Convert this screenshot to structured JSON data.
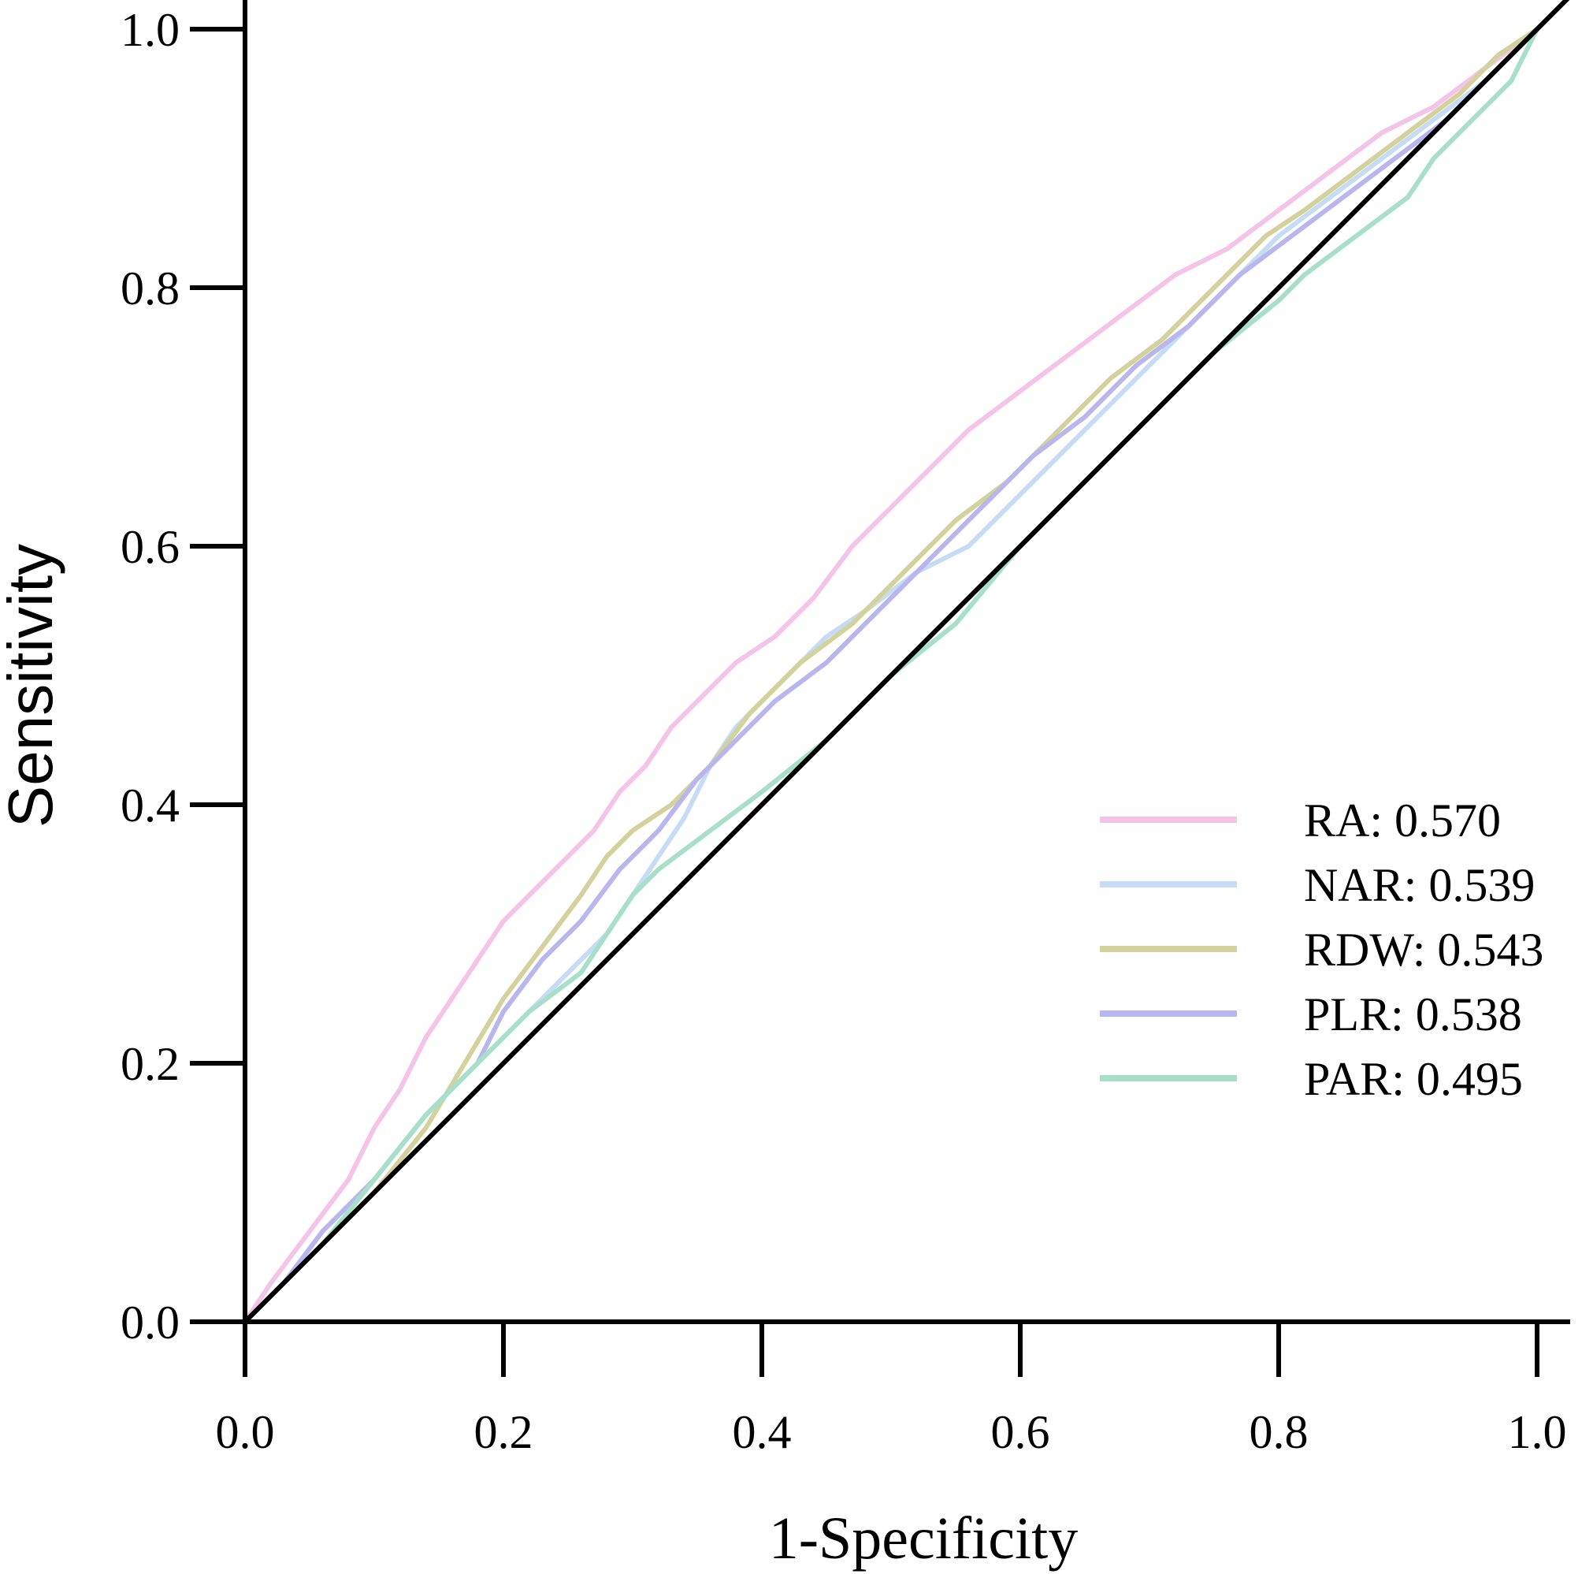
{
  "chart_data": {
    "type": "line",
    "title": "",
    "xlabel": "1-Specificity",
    "ylabel": "Sensitivity",
    "xlim": [
      0,
      1
    ],
    "ylim": [
      0,
      1
    ],
    "x_ticks": [
      "0.0",
      "0.2",
      "0.4",
      "0.6",
      "0.8",
      "1.0"
    ],
    "y_ticks": [
      "0.0",
      "0.2",
      "0.4",
      "0.6",
      "0.8",
      "1.0"
    ],
    "grid": false,
    "legend_position": "right",
    "reference_line": {
      "x": [
        0,
        1
      ],
      "y": [
        0,
        1
      ],
      "color": "#000000"
    },
    "series": [
      {
        "name": "RA",
        "auc": "0.570",
        "legend_text": "RA: 0.570",
        "color": "#f4c3e8",
        "x": [
          0,
          0.02,
          0.05,
          0.08,
          0.1,
          0.12,
          0.14,
          0.16,
          0.18,
          0.2,
          0.22,
          0.25,
          0.27,
          0.29,
          0.31,
          0.33,
          0.36,
          0.38,
          0.41,
          0.44,
          0.47,
          0.5,
          0.53,
          0.56,
          0.6,
          0.64,
          0.68,
          0.72,
          0.76,
          0.8,
          0.84,
          0.88,
          0.92,
          0.96,
          1.0
        ],
        "y": [
          0,
          0.03,
          0.07,
          0.11,
          0.15,
          0.18,
          0.22,
          0.25,
          0.28,
          0.31,
          0.33,
          0.36,
          0.38,
          0.41,
          0.43,
          0.46,
          0.49,
          0.51,
          0.53,
          0.56,
          0.6,
          0.63,
          0.66,
          0.69,
          0.72,
          0.75,
          0.78,
          0.81,
          0.83,
          0.86,
          0.89,
          0.92,
          0.94,
          0.97,
          1.0
        ]
      },
      {
        "name": "NAR",
        "auc": "0.539",
        "legend_text": "NAR: 0.539",
        "color": "#c5dcf4",
        "x": [
          0,
          0.03,
          0.06,
          0.1,
          0.14,
          0.18,
          0.22,
          0.26,
          0.28,
          0.3,
          0.32,
          0.34,
          0.36,
          0.38,
          0.4,
          0.42,
          0.45,
          0.48,
          0.52,
          0.56,
          0.6,
          0.64,
          0.68,
          0.72,
          0.76,
          0.8,
          0.84,
          0.88,
          0.92,
          0.96,
          1.0
        ],
        "y": [
          0,
          0.03,
          0.07,
          0.11,
          0.16,
          0.2,
          0.24,
          0.28,
          0.3,
          0.33,
          0.36,
          0.39,
          0.43,
          0.46,
          0.48,
          0.5,
          0.53,
          0.55,
          0.58,
          0.6,
          0.64,
          0.68,
          0.72,
          0.76,
          0.8,
          0.84,
          0.87,
          0.9,
          0.93,
          0.96,
          1.0
        ]
      },
      {
        "name": "RDW",
        "auc": "0.543",
        "legend_text": "RDW: 0.543",
        "color": "#d4d29c",
        "x": [
          0,
          0.03,
          0.06,
          0.1,
          0.14,
          0.17,
          0.2,
          0.23,
          0.26,
          0.28,
          0.3,
          0.33,
          0.36,
          0.39,
          0.43,
          0.47,
          0.51,
          0.55,
          0.59,
          0.63,
          0.67,
          0.71,
          0.75,
          0.79,
          0.82,
          0.86,
          0.9,
          0.94,
          0.97,
          1.0
        ],
        "y": [
          0,
          0.03,
          0.06,
          0.1,
          0.15,
          0.2,
          0.25,
          0.29,
          0.33,
          0.36,
          0.38,
          0.4,
          0.43,
          0.47,
          0.51,
          0.54,
          0.58,
          0.62,
          0.65,
          0.69,
          0.73,
          0.76,
          0.8,
          0.84,
          0.86,
          0.89,
          0.92,
          0.95,
          0.98,
          1.0
        ]
      },
      {
        "name": "PLR",
        "auc": "0.538",
        "legend_text": "PLR: 0.538",
        "color": "#b9b6ee",
        "x": [
          0,
          0.03,
          0.06,
          0.1,
          0.14,
          0.18,
          0.2,
          0.23,
          0.26,
          0.29,
          0.32,
          0.35,
          0.38,
          0.41,
          0.45,
          0.49,
          0.53,
          0.57,
          0.61,
          0.65,
          0.69,
          0.73,
          0.77,
          0.81,
          0.85,
          0.89,
          0.93,
          0.97,
          1.0
        ],
        "y": [
          0,
          0.03,
          0.07,
          0.11,
          0.16,
          0.2,
          0.24,
          0.28,
          0.31,
          0.35,
          0.38,
          0.42,
          0.45,
          0.48,
          0.51,
          0.55,
          0.59,
          0.63,
          0.67,
          0.7,
          0.74,
          0.77,
          0.81,
          0.84,
          0.87,
          0.9,
          0.93,
          0.97,
          1.0
        ]
      },
      {
        "name": "PAR",
        "auc": "0.495",
        "legend_text": "PAR: 0.495",
        "color": "#a8dfc9",
        "x": [
          0,
          0.03,
          0.06,
          0.1,
          0.14,
          0.18,
          0.22,
          0.26,
          0.28,
          0.3,
          0.32,
          0.36,
          0.4,
          0.45,
          0.5,
          0.55,
          0.6,
          0.65,
          0.7,
          0.75,
          0.8,
          0.82,
          0.86,
          0.9,
          0.92,
          0.95,
          0.98,
          1.0
        ],
        "y": [
          0,
          0.03,
          0.06,
          0.11,
          0.16,
          0.2,
          0.24,
          0.27,
          0.3,
          0.33,
          0.35,
          0.38,
          0.41,
          0.45,
          0.5,
          0.54,
          0.6,
          0.65,
          0.7,
          0.75,
          0.79,
          0.81,
          0.84,
          0.87,
          0.9,
          0.93,
          0.96,
          1.0
        ]
      }
    ]
  }
}
